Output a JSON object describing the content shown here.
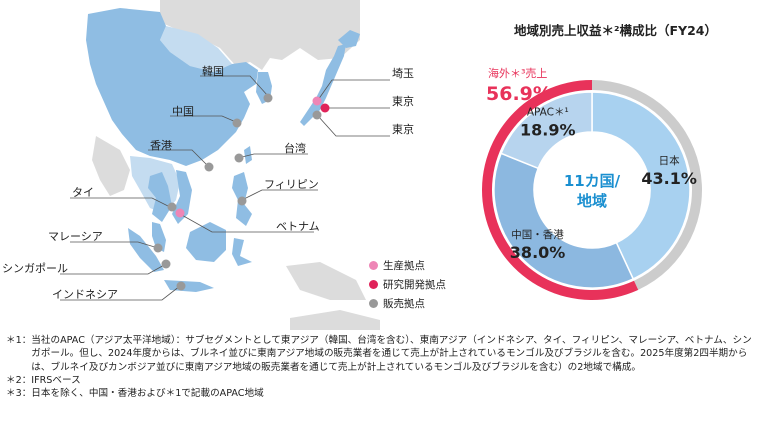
{
  "chart_data": {
    "type": "pie",
    "title": "地域別売上収益＊²構成比（FY24）",
    "center_label_line1": "11カ国/",
    "center_label_line2": "地域",
    "inner": [
      {
        "name": "日本",
        "value": 43.1,
        "display": "43.1%",
        "color": "#a8d1f0"
      },
      {
        "name": "中国・香港",
        "value": 38.0,
        "display": "38.0%",
        "color": "#8cb8e0"
      },
      {
        "name": "APAC＊¹",
        "value": 18.9,
        "display": "18.9%",
        "color": "#b7d4ee"
      }
    ],
    "outer": [
      {
        "name": "海外＊³売上",
        "value": 56.9,
        "display": "56.9%",
        "color": "#e8325a"
      },
      {
        "name": "日本",
        "value": 43.1,
        "display": "",
        "color": "#cccccc"
      }
    ]
  },
  "map": {
    "labels": {
      "korea": "韓国",
      "china": "中国",
      "hongkong": "香港",
      "taiwan": "台湾",
      "philippines": "フィリピン",
      "thailand": "タイ",
      "vietnam": "ベトナム",
      "malaysia": "マレーシア",
      "singapore": "シンガポール",
      "indonesia": "インドネシア",
      "saitama": "埼玉",
      "tokyo_rd": "東京",
      "tokyo_sales": "東京"
    }
  },
  "legend": [
    {
      "label": "生産拠点",
      "color": "#ee86b6"
    },
    {
      "label": "研究開発拠点",
      "color": "#e0235a"
    },
    {
      "label": "販売拠点",
      "color": "#999999"
    }
  ],
  "footnotes": [
    {
      "mark": "＊1：",
      "text": "当社のAPAC（アジア太平洋地域）：サブセグメントとして東アジア（韓国、台湾を含む）、東南アジア（インドネシア、タイ、フィリピン、マレーシア、ベトナム、シンガポール。但し、2024年度からは、ブルネイ並びに東南アジア地域の販売業者を通じて売上が計上されているモンゴル及びブラジルを含む。2025年度第2四半期からは、ブルネイ及びカンボジア並びに東南アジア地域の販売業者を通じて売上が計上されているモンゴル及びブラジルを含む）の2地域で構成。"
    },
    {
      "mark": "＊2：",
      "text": "IFRSベース"
    },
    {
      "mark": "＊3：",
      "text": "日本を除く、中国・香港および＊1で記載のAPAC地域"
    }
  ]
}
